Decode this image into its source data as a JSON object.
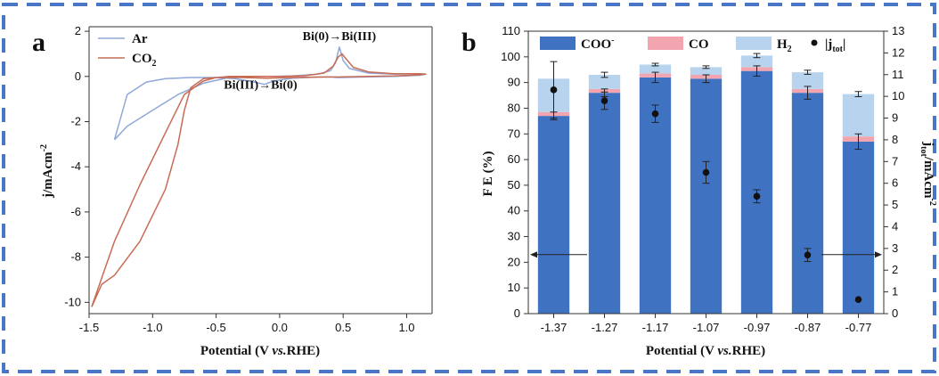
{
  "colors": {
    "frame": "#4a76c8",
    "ar": "#8fa8d9",
    "co2": "#c86b55",
    "coo": "#3f72c0",
    "co": "#f2a5ae",
    "h2": "#b7d3ee",
    "dot": "#111111"
  },
  "chart_data": [
    {
      "type": "line",
      "panel_label": "a",
      "xlabel_parts": [
        "Potential (V ",
        "vs.",
        "RHE)"
      ],
      "ylabel_parts": [
        "j/mAcm",
        "-2"
      ],
      "xlim": [
        -1.5,
        1.2
      ],
      "ylim": [
        -10.5,
        2.2
      ],
      "xticks": [
        -1.5,
        -1.0,
        -0.5,
        0.0,
        0.5,
        1.0
      ],
      "xtick_labels": [
        "-1.5",
        "-1.0",
        "-0.5",
        "0.0",
        "0.5",
        "1.0"
      ],
      "yticks": [
        2,
        0,
        -2,
        -4,
        -6,
        -8,
        -10
      ],
      "ytick_labels": [
        "2",
        "0",
        "-2",
        "-4",
        "-6",
        "-8",
        "-10"
      ],
      "legend": {
        "position": "top-left",
        "entries": [
          {
            "label_parts": [
              "Ar",
              ""
            ],
            "series": "Ar"
          },
          {
            "label_parts": [
              "CO",
              "2"
            ],
            "series": "CO2"
          }
        ]
      },
      "annotations": [
        {
          "text": "Bi(0)→Bi(III)",
          "x": 0.47,
          "y": 1.6
        },
        {
          "text": "Bi(III)→Bi(0)",
          "x": -0.15,
          "y": -0.55
        }
      ],
      "series": [
        {
          "id": "Ar",
          "x": [
            -1.3,
            -1.2,
            -1.0,
            -0.8,
            -0.6,
            -0.4,
            -0.3,
            -0.15,
            -0.05,
            0.1,
            0.3,
            0.4,
            0.44,
            0.47,
            0.5,
            0.55,
            0.7,
            0.9,
            1.1,
            1.15,
            1.1,
            0.9,
            0.7,
            0.5,
            0.45,
            0.4,
            0.3,
            0.1,
            -0.05,
            -0.12,
            -0.2,
            -0.35,
            -0.5,
            -0.7,
            -0.9,
            -1.05,
            -1.2,
            -1.3
          ],
          "y": [
            -2.8,
            -2.2,
            -1.5,
            -0.8,
            -0.3,
            -0.05,
            0.0,
            0.0,
            0.0,
            0.02,
            0.1,
            0.25,
            0.6,
            1.3,
            0.7,
            0.35,
            0.15,
            0.1,
            0.12,
            0.1,
            0.05,
            0.0,
            -0.02,
            -0.05,
            -0.05,
            -0.02,
            -0.03,
            -0.08,
            -0.2,
            -0.35,
            -0.25,
            -0.1,
            -0.05,
            -0.05,
            -0.1,
            -0.25,
            -0.8,
            -2.8
          ]
        },
        {
          "id": "CO2",
          "x": [
            -1.48,
            -1.4,
            -1.3,
            -1.1,
            -0.9,
            -0.8,
            -0.75,
            -0.7,
            -0.6,
            -0.4,
            -0.2,
            0.0,
            0.2,
            0.35,
            0.42,
            0.46,
            0.49,
            0.52,
            0.58,
            0.7,
            0.9,
            1.1,
            1.15,
            1.1,
            0.9,
            0.7,
            0.5,
            0.3,
            0.1,
            -0.1,
            -0.3,
            -0.5,
            -0.6,
            -0.75,
            -0.9,
            -1.1,
            -1.3,
            -1.48
          ],
          "y": [
            -10.2,
            -9.2,
            -8.8,
            -7.3,
            -5.0,
            -3.0,
            -1.5,
            -0.5,
            -0.1,
            0.0,
            0.0,
            0.0,
            0.03,
            0.15,
            0.45,
            0.85,
            1.0,
            0.8,
            0.4,
            0.2,
            0.12,
            0.12,
            0.1,
            0.07,
            0.02,
            0.0,
            -0.02,
            -0.03,
            -0.05,
            -0.08,
            -0.05,
            -0.05,
            -0.2,
            -0.8,
            -2.5,
            -4.8,
            -7.3,
            -10.2
          ]
        }
      ]
    },
    {
      "type": "bar",
      "panel_label": "b",
      "xlabel_parts": [
        "Potential (V ",
        "vs.",
        "RHE)"
      ],
      "ylabel": "F E  (%)",
      "y2label_parts": [
        "j",
        "tot",
        "/mAcm",
        "-2"
      ],
      "ylim": [
        0,
        110
      ],
      "y2lim": [
        0,
        13
      ],
      "yticks": [
        0,
        10,
        20,
        30,
        40,
        50,
        60,
        70,
        80,
        90,
        100,
        110
      ],
      "ytick_labels": [
        "0",
        "10",
        "20",
        "30",
        "40",
        "50",
        "60",
        "70",
        "80",
        "90",
        "100",
        "110"
      ],
      "y2ticks": [
        0,
        1,
        2,
        3,
        4,
        5,
        6,
        7,
        8,
        9,
        10,
        11,
        12,
        13
      ],
      "y2tick_labels": [
        "0",
        "1",
        "2",
        "3",
        "4",
        "5",
        "6",
        "7",
        "8",
        "9",
        "10",
        "11",
        "12",
        "13"
      ],
      "categories": [
        "-1.37",
        "-1.27",
        "-1.17",
        "-1.07",
        "-0.97",
        "-0.87",
        "-0.77"
      ],
      "legend": {
        "position": "top",
        "entries": [
          {
            "label_parts": [
              "COO",
              "-",
              ""
            ],
            "kind": "box",
            "series": "COO"
          },
          {
            "label_parts": [
              "CO",
              "",
              ""
            ],
            "kind": "box",
            "series": "CO"
          },
          {
            "label_parts": [
              "H",
              "",
              "2"
            ],
            "kind": "box",
            "series": "H2"
          },
          {
            "label_parts": [
              "|j",
              "",
              "tot",
              "|"
            ],
            "kind": "dot",
            "series": "jtot"
          }
        ]
      },
      "series": [
        {
          "id": "COO",
          "values": [
            77,
            86,
            92,
            91.5,
            94.5,
            86,
            67
          ],
          "errors": [
            1.5,
            1.5,
            2,
            1.5,
            2,
            2.5,
            3
          ]
        },
        {
          "id": "CO",
          "values": [
            1.5,
            1.5,
            1.5,
            1.5,
            1.5,
            1.5,
            2
          ],
          "errors": [
            0,
            0,
            0,
            0,
            0,
            0,
            0
          ]
        },
        {
          "id": "H2",
          "values": [
            13,
            5.5,
            3.5,
            3,
            4.5,
            6.5,
            16.5
          ],
          "errors": [
            0,
            1,
            0.5,
            0.5,
            0.8,
            0.8,
            1
          ]
        },
        {
          "id": "jtot",
          "axis": "right",
          "values": [
            10.3,
            9.8,
            9.2,
            6.5,
            5.4,
            2.7,
            0.65
          ],
          "errors": [
            1.3,
            0.4,
            0.4,
            0.5,
            0.3,
            0.3,
            0
          ]
        }
      ]
    }
  ]
}
